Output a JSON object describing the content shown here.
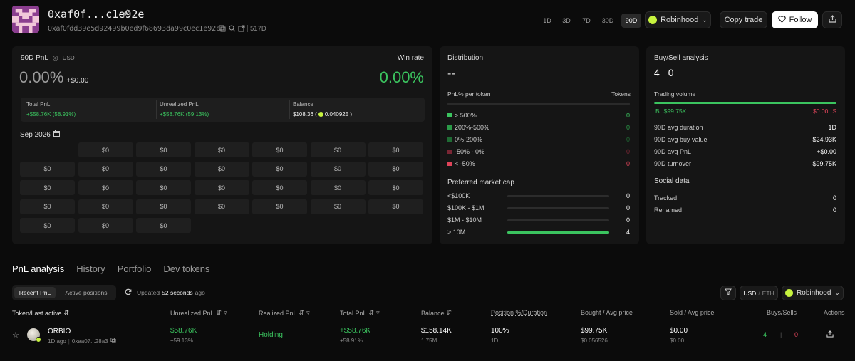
{
  "profile": {
    "name": "0xaf0f...c1e92e",
    "address": "0xaf0fdd39e5d92499b0ed9f68693da99c0ec1e92e",
    "age": "517D"
  },
  "timeframes": [
    "1D",
    "3D",
    "7D",
    "30D",
    "90D"
  ],
  "timeframe_selected": "90D",
  "platform": "Robinhood",
  "actions": {
    "copy_trade": "Copy trade",
    "follow": "Follow"
  },
  "pnl": {
    "title": "90D PnL",
    "currency": "USD",
    "percent": "0.00%",
    "amount": "+$0.00",
    "win_rate_label": "Win rate",
    "win_rate": "0.00%",
    "total_label": "Total PnL",
    "total_value": "+$58.76K (58.91%)",
    "unrealized_label": "Unrealized PnL",
    "unrealized_value": "+$58.76K (59.13%)",
    "balance_label": "Balance",
    "balance_value": "$108.36 (",
    "balance_native": "0.040925 )"
  },
  "calendar": {
    "month": "Sep 2026",
    "cells": [
      "$0",
      "$0",
      "$0",
      "$0",
      "$0",
      "$0",
      "$0",
      "$0",
      "$0",
      "$0",
      "$0",
      "$0",
      "$0",
      "$0",
      "$0",
      "$0",
      "$0",
      "$0",
      "$0",
      "$0",
      "$0",
      "$0",
      "$0",
      "$0",
      "$0",
      "$0",
      "$0",
      "$0",
      "$0",
      "$0"
    ]
  },
  "distribution": {
    "title": "Distribution",
    "value": "--",
    "col_left": "PnL% per token",
    "col_right": "Tokens",
    "rows": [
      {
        "label": "> 500%",
        "count": "0",
        "color": "#3bc45f"
      },
      {
        "label": "200%-500%",
        "count": "0",
        "color": "#2b9a48"
      },
      {
        "label": "0%-200%",
        "count": "0",
        "color": "#1f6b34"
      },
      {
        "label": "-50% - 0%",
        "count": "0",
        "color": "#7a2634"
      },
      {
        "label": "< -50%",
        "count": "0",
        "color": "#e0445a"
      }
    ],
    "mcap_title": "Preferred market cap",
    "mcap": [
      {
        "label": "<$100K",
        "count": "0",
        "fill": 0
      },
      {
        "label": "$100K - $1M",
        "count": "0",
        "fill": 0
      },
      {
        "label": "$1M - $10M",
        "count": "0",
        "fill": 0
      },
      {
        "label": "> 10M",
        "count": "4",
        "fill": 1
      }
    ]
  },
  "buysell": {
    "title": "Buy/Sell analysis",
    "buys": "4",
    "sells": "0",
    "volume_label": "Trading volume",
    "buy_prefix": "B",
    "buy_volume": "$99.75K",
    "sell_volume": "$0.00",
    "sell_suffix": "S",
    "stats": [
      {
        "label": "90D avg duration",
        "value": "1D"
      },
      {
        "label": "90D avg buy value",
        "value": "$24.93K"
      },
      {
        "label": "90D avg PnL",
        "value": "+$0.00"
      },
      {
        "label": "90D turnover",
        "value": "$99.75K"
      }
    ],
    "social_title": "Social data",
    "social": [
      {
        "label": "Tracked",
        "value": "0"
      },
      {
        "label": "Renamed",
        "value": "0"
      }
    ]
  },
  "tabs": [
    "PnL analysis",
    "History",
    "Portfolio",
    "Dev tokens"
  ],
  "subtabs": [
    "Recent PnL",
    "Active positions"
  ],
  "updated_prefix": "Updated",
  "updated_time": "52 seconds",
  "updated_suffix": "ago",
  "currency_toggle": {
    "a": "USD",
    "sep": "/",
    "b": "ETH"
  },
  "table": {
    "headers": [
      "Token/Last active",
      "Unrealized PnL",
      "Realized PnL",
      "Total PnL",
      "Balance",
      "Position %/Duration",
      "Bought / Avg price",
      "Sold / Avg price",
      "Buys/Sells",
      "Actions"
    ],
    "row": {
      "token": "ORBIO",
      "active": "1D ago",
      "addr": "0xaa07...28a3",
      "unrealized": "$58.76K",
      "unrealized_pct": "+59.13%",
      "realized": "Holding",
      "total": "+$58.76K",
      "total_pct": "+58.91%",
      "balance": "$158.14K",
      "balance_qty": "1.75M",
      "position": "100%",
      "duration": "1D",
      "bought": "$99.75K",
      "bought_avg": "$0.056526",
      "sold": "$0.00",
      "sold_avg": "$0.00",
      "buys": "4",
      "sells": "0"
    }
  }
}
